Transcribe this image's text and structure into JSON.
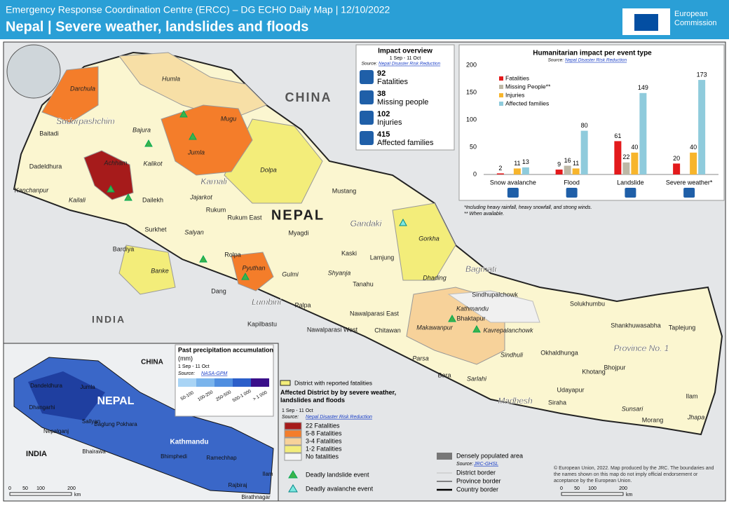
{
  "header": {
    "title": "Emergency Response Coordination Centre (ERCC) – DG ECHO Daily Map | 12/10/2022",
    "subtitle": "Nepal | Severe weather, landslides and floods",
    "logo": "European Commission"
  },
  "overview": {
    "title": "Impact overview",
    "period": "1 Sep - 11 Oct",
    "source": "Source:",
    "source_link": "Nepal Disaster Risk Reduction",
    "items": [
      {
        "value": "92",
        "label": "Fatalities"
      },
      {
        "value": "38",
        "label": "Missing people"
      },
      {
        "value": "102",
        "label": "Injuries"
      },
      {
        "value": "415",
        "label": "Affected families"
      }
    ]
  },
  "chart_data": {
    "type": "bar",
    "title": "Humanitarian impact per event type",
    "source": "Source:",
    "source_link": "Nepal Disaster Risk Reduction",
    "categories": [
      "Snow avalanche",
      "Flood",
      "Landslide",
      "Severe weather*"
    ],
    "series": [
      {
        "name": "Fatalities",
        "color": "#e31a1c",
        "values": [
          2,
          9,
          61,
          20
        ]
      },
      {
        "name": "Missing People**",
        "color": "#bdb8a6",
        "values": [
          null,
          16,
          22,
          null
        ]
      },
      {
        "name": "Injuries",
        "color": "#f7b52c",
        "values": [
          11,
          11,
          40,
          40
        ]
      },
      {
        "name": "Affected families",
        "color": "#8fcbdc",
        "values": [
          13,
          80,
          149,
          173
        ]
      }
    ],
    "ylim": [
      0,
      200
    ],
    "yticks": [
      0,
      50,
      100,
      150,
      200
    ],
    "legend": "top-left",
    "notes": [
      "*Including heavy rainfall, heavy snowfall, and strong winds.",
      "** When available."
    ]
  },
  "map": {
    "countries": [
      "CHINA",
      "INDIA",
      "NEPAL"
    ],
    "provinces": [
      "Sudurpashchim",
      "Karnali",
      "Gandaki",
      "Bagmati",
      "Lumbini",
      "Madhesh",
      "Province No. 1"
    ],
    "districts": [
      "Darchula",
      "Humla",
      "Mugu",
      "Bajura",
      "Baitadi",
      "Jumla",
      "Achham",
      "Kalikot",
      "Dadeldhura",
      "Dolpa",
      "Kanchanpur",
      "Kailali",
      "Jajarkot",
      "Dailekh",
      "Rukum",
      "Rukum East",
      "Mustang",
      "Surkhet",
      "Salyan",
      "Myagdi",
      "Bardiya",
      "Rolpa",
      "Kaski",
      "Gorkha",
      "Lamjung",
      "Banke",
      "Pyuthan",
      "Gulmi",
      "Shyanja",
      "Tanahu",
      "Dhading",
      "Dang",
      "Palpa",
      "Nawalparasi East",
      "Sindhupalchowk",
      "Kathmandu",
      "Bhaktapur",
      "Solukhumbu",
      "Kapilbastu",
      "Nawalparasi West",
      "Chitawan",
      "Makawanpur",
      "Kavrepalanchowk",
      "Shankhuwasabha",
      "Taplejung",
      "Okhaldhunga",
      "Sindhuli",
      "Parsa",
      "Bara",
      "Sarlahi",
      "Khotang",
      "Bhojpur",
      "Udayapur",
      "Siraha",
      "Sunsari",
      "Ilam",
      "Morang",
      "Jhapa"
    ]
  },
  "inset": {
    "title": "Past precipitation accumulation",
    "unit": "(mm)",
    "period": "1 Sep - 11 Oct",
    "source": "Source:",
    "source_link": "NASA-GPM",
    "classes": [
      "50-100",
      "100-250",
      "250-500",
      "500-1 000",
      "> 1 000"
    ],
    "labels": [
      "CHINA",
      "NEPAL",
      "INDIA",
      "Dandeldhura",
      "Jumla",
      "Dhangarhi",
      "Sallyan",
      "Nepalganj",
      "Baglung Pokhara",
      "Kathmandu",
      "Bhairawa",
      "Bhimphedi",
      "Ramechhap",
      "Ilam",
      "Rajbiraj",
      "Birathnagar"
    ]
  },
  "legend": {
    "fatal": "District with reported fatalities",
    "title": "Affected District by by severe weather, landslides and floods",
    "period": "1 Sep - 11 Oct",
    "source": "Source:",
    "source_link": "Nepal Disaster Risk Reduction",
    "classes": [
      "22 Fatalities",
      "5-8 Fatalities",
      "3-4 Fatalities",
      "1-2 Fatalities",
      "No fatalities"
    ],
    "landslide": "Deadly landslide event",
    "avalanche": "Deadly avalanche event",
    "dense": "Densely populated area",
    "dense_source": "Source:",
    "dense_link": "JRC-GHSL",
    "district_border": "District border",
    "province_border": "Province border",
    "country_border": "Country border"
  },
  "scale": {
    "ticks": [
      "0",
      "50",
      "100",
      "200"
    ],
    "unit": "km"
  },
  "copyright": "© European Union, 2022. Map produced by the JRC. The boundaries and the names shown on this map do not imply official endorsement or acceptance by the European Union."
}
